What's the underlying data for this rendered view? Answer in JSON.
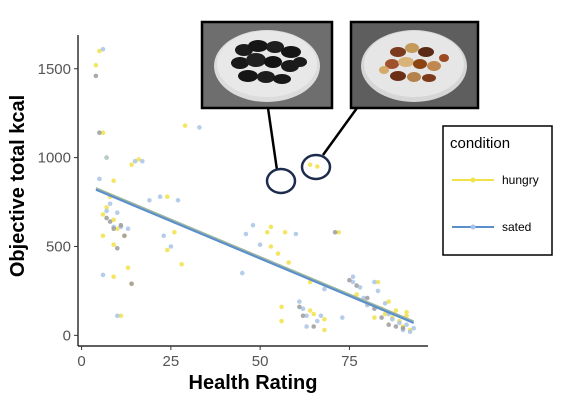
{
  "chart_data": {
    "type": "scatter",
    "xlabel": "Health Rating",
    "ylabel": "Objective total kcal",
    "xlim": [
      -1,
      97
    ],
    "ylim": [
      -60,
      1690
    ],
    "x_ticks": [
      0,
      25,
      50,
      75
    ],
    "y_ticks": [
      0,
      500,
      1000,
      1500
    ],
    "grid": false,
    "legend": {
      "title": "condition",
      "position": "right"
    },
    "colors": {
      "hungry": "#f2e24a",
      "sated": "#a9c4e6",
      "gray": "#9b9b9b",
      "line": "#5a8fcc"
    },
    "series": [
      {
        "name": "hungry",
        "points": [
          [
            5,
            1600
          ],
          [
            4,
            1520
          ],
          [
            6,
            1140
          ],
          [
            7,
            1000
          ],
          [
            9,
            870
          ],
          [
            8,
            780
          ],
          [
            7,
            720
          ],
          [
            6,
            680
          ],
          [
            9,
            650
          ],
          [
            10,
            600
          ],
          [
            6,
            560
          ],
          [
            9,
            510
          ],
          [
            12,
            560
          ],
          [
            13,
            380
          ],
          [
            9,
            330
          ],
          [
            14,
            290
          ],
          [
            11,
            110
          ],
          [
            16,
            990
          ],
          [
            14,
            960
          ],
          [
            24,
            780
          ],
          [
            26,
            580
          ],
          [
            24,
            480
          ],
          [
            28,
            400
          ],
          [
            29,
            1180
          ],
          [
            53,
            610
          ],
          [
            52,
            580
          ],
          [
            57,
            580
          ],
          [
            53,
            500
          ],
          [
            55,
            460
          ],
          [
            58,
            410
          ],
          [
            56,
            160
          ],
          [
            56,
            80
          ],
          [
            64,
            300
          ],
          [
            64,
            140
          ],
          [
            65,
            120
          ],
          [
            68,
            90
          ],
          [
            68,
            30
          ],
          [
            72,
            580
          ],
          [
            64,
            960
          ],
          [
            66,
            950
          ],
          [
            77,
            230
          ],
          [
            80,
            170
          ],
          [
            82,
            100
          ],
          [
            83,
            300
          ],
          [
            84,
            150
          ],
          [
            85,
            120
          ],
          [
            87,
            100
          ],
          [
            88,
            140
          ],
          [
            89,
            80
          ],
          [
            90,
            50
          ],
          [
            91,
            110
          ],
          [
            92,
            30
          ],
          [
            91,
            130
          ],
          [
            86,
            190
          ]
        ]
      },
      {
        "name": "sated",
        "points": [
          [
            6,
            1610
          ],
          [
            5,
            880
          ],
          [
            7,
            1000
          ],
          [
            8,
            740
          ],
          [
            7,
            700
          ],
          [
            9,
            610
          ],
          [
            10,
            690
          ],
          [
            11,
            610
          ],
          [
            13,
            600
          ],
          [
            6,
            340
          ],
          [
            10,
            110
          ],
          [
            15,
            980
          ],
          [
            17,
            980
          ],
          [
            19,
            760
          ],
          [
            22,
            780
          ],
          [
            23,
            560
          ],
          [
            25,
            500
          ],
          [
            27,
            760
          ],
          [
            33,
            1170
          ],
          [
            46,
            570
          ],
          [
            48,
            620
          ],
          [
            50,
            510
          ],
          [
            45,
            350
          ],
          [
            60,
            570
          ],
          [
            61,
            190
          ],
          [
            62,
            150
          ],
          [
            63,
            110
          ],
          [
            66,
            80
          ],
          [
            67,
            110
          ],
          [
            63,
            50
          ],
          [
            68,
            260
          ],
          [
            73,
            100
          ],
          [
            76,
            330
          ],
          [
            76,
            300
          ],
          [
            78,
            270
          ],
          [
            79,
            210
          ],
          [
            80,
            170
          ],
          [
            82,
            300
          ],
          [
            83,
            250
          ],
          [
            85,
            180
          ],
          [
            86,
            120
          ],
          [
            87,
            90
          ],
          [
            89,
            70
          ],
          [
            91,
            60
          ],
          [
            90,
            30
          ],
          [
            92,
            20
          ],
          [
            93,
            40
          ]
        ]
      },
      {
        "name": "gray",
        "points": [
          [
            4,
            1460
          ],
          [
            5,
            1140
          ],
          [
            7,
            660
          ],
          [
            8,
            640
          ],
          [
            9,
            600
          ],
          [
            11,
            620
          ],
          [
            12,
            560
          ],
          [
            10,
            490
          ],
          [
            14,
            290
          ],
          [
            61,
            160
          ],
          [
            62,
            110
          ],
          [
            65,
            50
          ],
          [
            71,
            580
          ],
          [
            75,
            310
          ],
          [
            77,
            280
          ],
          [
            80,
            210
          ],
          [
            82,
            150
          ],
          [
            84,
            100
          ],
          [
            86,
            60
          ],
          [
            88,
            50
          ],
          [
            90,
            40
          ]
        ]
      }
    ],
    "trend_lines": [
      {
        "name": "hungry",
        "x": [
          4,
          93
        ],
        "y": [
          830,
          80
        ]
      },
      {
        "name": "sated",
        "x": [
          4,
          93
        ],
        "y": [
          820,
          70
        ]
      }
    ]
  }
}
